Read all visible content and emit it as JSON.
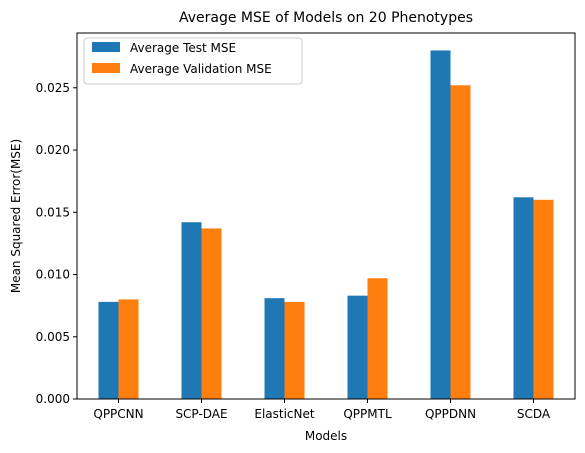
{
  "chart_data": {
    "type": "bar",
    "title": "Average MSE of Models on 20 Phenotypes",
    "xlabel": "Models",
    "ylabel": "Mean Squared Error(MSE)",
    "categories": [
      "QPPCNN",
      "SCP-DAE",
      "ElasticNet",
      "QPPMTL",
      "QPPDNN",
      "SCDA"
    ],
    "series": [
      {
        "name": "Average Test MSE",
        "color": "#1f77b4",
        "values": [
          0.0078,
          0.0142,
          0.0081,
          0.0083,
          0.028,
          0.0162
        ]
      },
      {
        "name": "Average Validation MSE",
        "color": "#ff7f0e",
        "values": [
          0.008,
          0.0137,
          0.0078,
          0.0097,
          0.0252,
          0.016
        ]
      }
    ],
    "ylim": [
      0,
      0.0294
    ],
    "yticks": [
      "0.000",
      "0.005",
      "0.010",
      "0.015",
      "0.020",
      "0.025"
    ],
    "ytick_values": [
      0,
      0.005,
      0.01,
      0.015,
      0.02,
      0.025
    ],
    "grid": false,
    "legend": "top-left"
  }
}
